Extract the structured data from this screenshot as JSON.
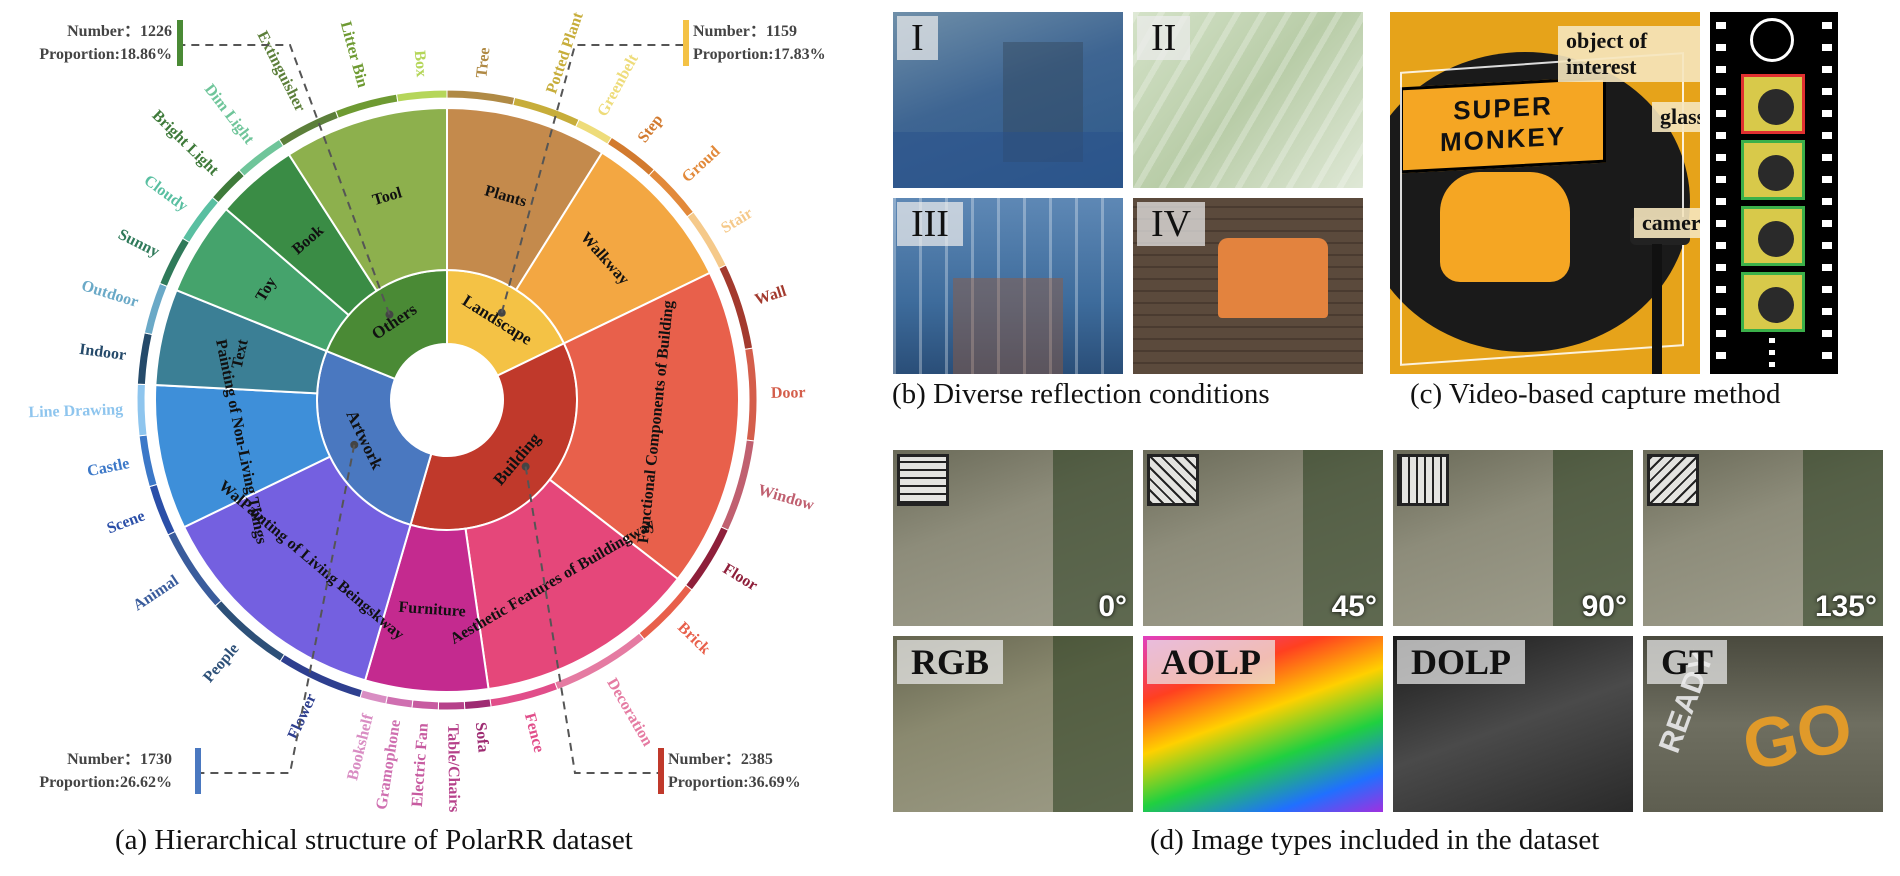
{
  "sunburst": {
    "center_hole": true,
    "inner": [
      {
        "label": "Landscape",
        "color": "#F4C245",
        "count": 1159,
        "proportion": "Proportion:17.83%",
        "number_label": "Number：1159"
      },
      {
        "label": "Building",
        "color": "#C0392B",
        "count": 2385,
        "proportion": "Proportion:36.69%",
        "number_label": "Number：2385"
      },
      {
        "label": "Artwork",
        "color": "#4A78C0",
        "count": 1730,
        "proportion": "Proportion:26.62%",
        "number_label": "Number：1730"
      },
      {
        "label": "Others",
        "color": "#4A8A35",
        "count": 1226,
        "proportion": "Proportion:18.86%",
        "number_label": "Number：1226"
      }
    ],
    "middle": [
      {
        "label": "Plants",
        "parent": 0,
        "weight": 5,
        "color": "#C48A4C"
      },
      {
        "label": "Walkway",
        "parent": 0,
        "weight": 5,
        "color": "#F3A742"
      },
      {
        "label": "Functional Components of Building",
        "parent": 1,
        "weight": 13,
        "color": "#E8604B"
      },
      {
        "label": "Aesthetic Features of Buildingway",
        "parent": 1,
        "weight": 9,
        "color": "#E5477A"
      },
      {
        "label": "Furniture",
        "parent": 1,
        "weight": 5,
        "color": "#C42A8F"
      },
      {
        "label": "WalPainting of Living Beingskway",
        "parent": 2,
        "weight": 10,
        "color": "#7460E0"
      },
      {
        "label": "Painting of Non-Living Things",
        "parent": 2,
        "weight": 6,
        "color": "#3E8FD9"
      },
      {
        "label": "Text",
        "parent": 2,
        "weight": 4,
        "color": "#3B7F95"
      },
      {
        "label": "Toy",
        "parent": 3,
        "weight": 4,
        "color": "#45A36C"
      },
      {
        "label": "Book",
        "parent": 3,
        "weight": 3.5,
        "color": "#3A8C45"
      },
      {
        "label": "Tool",
        "parent": 3,
        "weight": 7,
        "color": "#8DB04D"
      }
    ],
    "outer": [
      {
        "label": "Tree",
        "parent": 0,
        "weight": 2.2,
        "color": "#B08A45"
      },
      {
        "label": "Potted Plant",
        "parent": 0,
        "weight": 2.2,
        "color": "#C7AD3A"
      },
      {
        "label": "Greenbelt",
        "parent": 0,
        "weight": 1.2,
        "color": "#EEDC7A"
      },
      {
        "label": "Step",
        "parent": 1,
        "weight": 1.2,
        "color": "#D27A2E"
      },
      {
        "label": "Groud",
        "parent": 1,
        "weight": 1.3,
        "color": "#E2893A"
      },
      {
        "label": "Stair",
        "parent": 1,
        "weight": 1.4,
        "color": "#F5C98A"
      },
      {
        "label": "Wall",
        "parent": 2,
        "weight": 3,
        "color": "#A33A2E"
      },
      {
        "label": "Door",
        "parent": 2,
        "weight": 3.2,
        "color": "#D45E4B"
      },
      {
        "label": "Window",
        "parent": 2,
        "weight": 3.2,
        "color": "#C06070"
      },
      {
        "label": "Floor",
        "parent": 2,
        "weight": 2.4,
        "color": "#8E1F3A"
      },
      {
        "label": "Brick",
        "parent": 3,
        "weight": 2.6,
        "color": "#E8604B"
      },
      {
        "label": "Decoration",
        "parent": 3,
        "weight": 3.8,
        "color": "#E57BA2"
      },
      {
        "label": "Fence",
        "parent": 3,
        "weight": 2.6,
        "color": "#E14E8A"
      },
      {
        "label": "Sofa",
        "parent": 4,
        "weight": 1,
        "color": "#9E2B72"
      },
      {
        "label": "Table/Chairs",
        "parent": 4,
        "weight": 1,
        "color": "#B6418A"
      },
      {
        "label": "Electric Fan",
        "parent": 4,
        "weight": 1,
        "color": "#C75BA0"
      },
      {
        "label": "Gramophone",
        "parent": 4,
        "weight": 1,
        "color": "#CF6FB0"
      },
      {
        "label": "Bookshelf",
        "parent": 4,
        "weight": 1,
        "color": "#D98DC3"
      },
      {
        "label": "Flower",
        "parent": 5,
        "weight": 3.4,
        "color": "#2E3F8F"
      },
      {
        "label": "People",
        "parent": 5,
        "weight": 3.3,
        "color": "#2D5078"
      },
      {
        "label": "Animal",
        "parent": 5,
        "weight": 3.3,
        "color": "#3A5C9C"
      },
      {
        "label": "Scene",
        "parent": 6,
        "weight": 2,
        "color": "#2B4FA8"
      },
      {
        "label": "Castle",
        "parent": 6,
        "weight": 2,
        "color": "#3C78C8"
      },
      {
        "label": "Line Drawing",
        "parent": 6,
        "weight": 2,
        "color": "#8EC5EE"
      },
      {
        "label": "Indoor",
        "parent": 7,
        "weight": 2,
        "color": "#254A6A"
      },
      {
        "label": "Outdoor",
        "parent": 7,
        "weight": 2,
        "color": "#6AA9C7"
      },
      {
        "label": "Sunny",
        "parent": 8,
        "weight": 2,
        "color": "#2F7A5A"
      },
      {
        "label": "Cloudy",
        "parent": 8,
        "weight": 2,
        "color": "#59BFA1"
      },
      {
        "label": "Bright Light",
        "parent": 9,
        "weight": 1.5,
        "color": "#3E7A3A"
      },
      {
        "label": "Dim Light",
        "parent": 9,
        "weight": 2,
        "color": "#6FC59A"
      },
      {
        "label": "Extinguisher",
        "parent": 10,
        "weight": 2.5,
        "color": "#5C7F3A"
      },
      {
        "label": "Litter Bin",
        "parent": 10,
        "weight": 2.5,
        "color": "#6E9A32"
      },
      {
        "label": "Box",
        "parent": 10,
        "weight": 2,
        "color": "#B5D65A"
      }
    ]
  },
  "captions": {
    "a": "(a) Hierarchical structure of PolarRR dataset",
    "b": "(b) Diverse reflection conditions",
    "c": "(c) Video-based capture method",
    "d": "(d) Image types included in the dataset"
  },
  "panel_b": {
    "tags": [
      "I",
      "II",
      "III",
      "IV"
    ]
  },
  "panel_c": {
    "callouts": [
      "object of interest",
      "glass",
      "camera"
    ],
    "sign_text": [
      "SUPER",
      "MONKEY"
    ]
  },
  "panel_d": {
    "angles": [
      "0°",
      "45°",
      "90°",
      "135°"
    ],
    "types": [
      "RGB",
      "AOLP",
      "DOLP",
      "GT"
    ],
    "scene_text": [
      "READY",
      "GO"
    ]
  }
}
